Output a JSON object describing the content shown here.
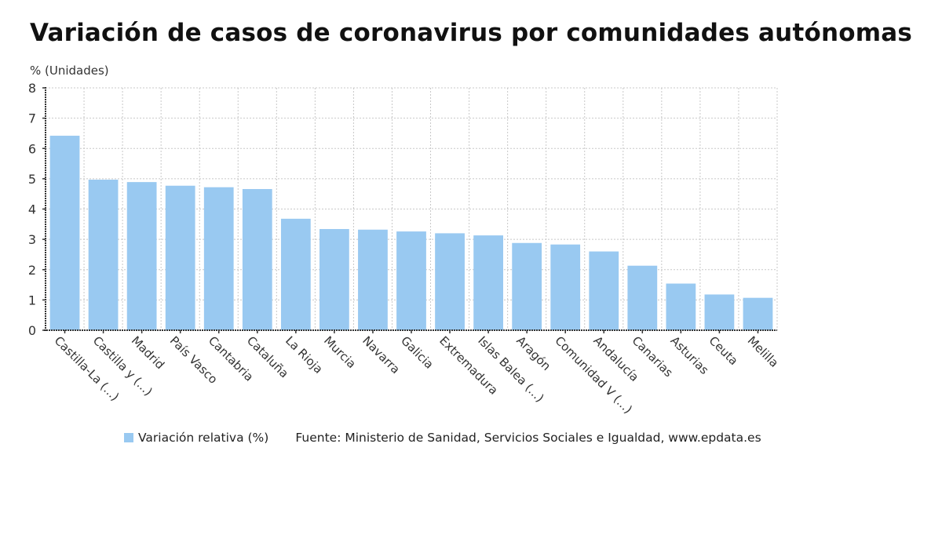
{
  "chart_data": {
    "type": "bar",
    "title": "Variación de casos de coronavirus por comunidades autónomas",
    "ylabel": "% (Unidades)",
    "xlabel": "",
    "ylim": [
      0,
      8
    ],
    "yticks": [
      0,
      1,
      2,
      3,
      4,
      5,
      6,
      7,
      8
    ],
    "grid": true,
    "legend_position": "bottom",
    "categories": [
      "Castilla-La (...)",
      "Castilla y (...)",
      "Madrid",
      "País Vasco",
      "Cantabria",
      "Cataluña",
      "La Rioja",
      "Murcia",
      "Navarra",
      "Galicia",
      "Extremadura",
      "Islas Balea (...)",
      "Aragón",
      "Comunidad V (...)",
      "Andalucía",
      "Canarias",
      "Asturias",
      "Ceuta",
      "Melilla"
    ],
    "series": [
      {
        "name": "Variación relativa (%)",
        "color": "#99c9f1",
        "values": [
          6.42,
          4.97,
          4.89,
          4.77,
          4.72,
          4.66,
          3.68,
          3.34,
          3.32,
          3.26,
          3.2,
          3.13,
          2.88,
          2.83,
          2.6,
          2.13,
          1.54,
          1.18,
          1.07
        ]
      }
    ],
    "source": "Fuente: Ministerio de Sanidad, Servicios Sociales e Igualdad, www.epdata.es"
  },
  "colors": {
    "bar": "#99c9f1",
    "grid": "#c8c8c8",
    "axis": "#333333"
  }
}
